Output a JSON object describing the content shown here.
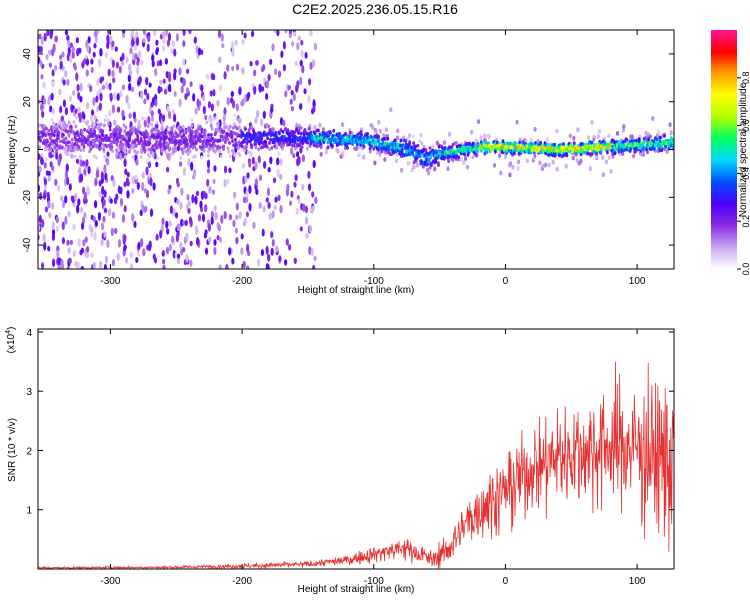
{
  "title": "C2E2.2025.236.05.15.R16",
  "chart_data": [
    {
      "type": "heatmap",
      "xlabel": "Height of straight line (km)",
      "ylabel": "Frequency (Hz)",
      "xlim": [
        -355,
        128
      ],
      "ylim": [
        -50,
        50
      ],
      "xticks": [
        -300,
        -200,
        -100,
        0,
        100
      ],
      "yticks": [
        -40,
        -20,
        0,
        20,
        40
      ],
      "colorbar": {
        "label": "Normalized spectral amplitude",
        "range": [
          0.0,
          1.0
        ],
        "ticks": [
          "0.0",
          "0.2",
          "0.4",
          "0.6",
          "0.8"
        ],
        "tick_values": [
          0.0,
          0.2,
          0.4,
          0.6,
          0.8
        ],
        "colors": [
          "#ffffff",
          "#c8a8f0",
          "#8a2be2",
          "#4b00ff",
          "#0050ff",
          "#00d8ff",
          "#00ff60",
          "#b0ff00",
          "#ffff00",
          "#ffa000",
          "#ff0000",
          "#ff1493"
        ]
      },
      "band_center": [
        [
          -350,
          5
        ],
        [
          -300,
          5
        ],
        [
          -250,
          4
        ],
        [
          -200,
          5
        ],
        [
          -150,
          5
        ],
        [
          -110,
          4
        ],
        [
          -90,
          2
        ],
        [
          -75,
          0
        ],
        [
          -60,
          -4
        ],
        [
          -50,
          -2
        ],
        [
          -40,
          -1
        ],
        [
          -20,
          1
        ],
        [
          0,
          1
        ],
        [
          40,
          0
        ],
        [
          80,
          1
        ],
        [
          128,
          3
        ]
      ]
    },
    {
      "type": "line",
      "xlabel": "Height of straight line (km)",
      "ylabel": "SNR (10 * v/v)",
      "scale_label": "(x10",
      "scale_exponent": "4",
      "xlim": [
        -355,
        128
      ],
      "ylim": [
        0,
        40500
      ],
      "xticks": [
        -300,
        -200,
        -100,
        0,
        100
      ],
      "yticks": [
        1,
        2,
        3,
        4
      ],
      "color": "#e83030",
      "envelope": {
        "x": [
          -355,
          -250,
          -200,
          -150,
          -120,
          -100,
          -90,
          -75,
          -60,
          -55,
          -45,
          -35,
          -25,
          -15,
          0,
          20,
          40,
          60,
          80,
          100,
          115,
          128
        ],
        "mean": [
          200,
          300,
          500,
          800,
          1500,
          2500,
          3000,
          3500,
          2000,
          1500,
          3000,
          6000,
          9000,
          11000,
          13000,
          17000,
          19000,
          20000,
          21000,
          20500,
          19000,
          18000
        ],
        "amp": [
          200,
          300,
          500,
          700,
          1000,
          1800,
          2200,
          2500,
          2000,
          2000,
          3000,
          5000,
          6000,
          7000,
          8000,
          9000,
          11000,
          12000,
          13000,
          15000,
          17000,
          18000
        ]
      }
    }
  ]
}
